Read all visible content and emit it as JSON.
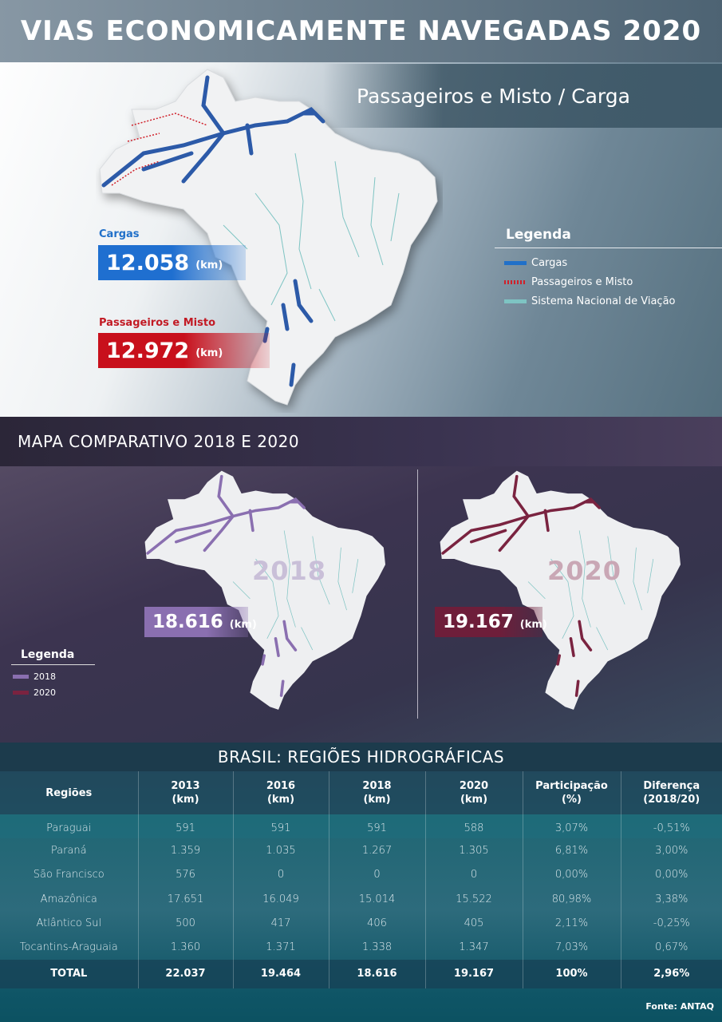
{
  "title": "VIAS ECONOMICAMENTE NAVEGADAS 2020",
  "top": {
    "subtitle": "Passageiros e Misto / Carga",
    "cargas": {
      "label": "Cargas",
      "value": "12.058",
      "unit": "(km)"
    },
    "passageiros": {
      "label": "Passageiros e Misto",
      "value": "12.972",
      "unit": "(km)"
    },
    "legend": {
      "title": "Legenda",
      "items": [
        {
          "label": "Cargas",
          "color": "#2170c9"
        },
        {
          "label": "Passageiros e Misto",
          "color": "#d0202a"
        },
        {
          "label": "Sistema Nacional de Viação",
          "color": "#7ec4c3"
        }
      ]
    }
  },
  "comparison": {
    "title": "MAPA COMPARATIVO 2018 E 2020",
    "map2018": {
      "year": "2018",
      "value": "18.616",
      "unit": "(km)",
      "color": "#8a6fb0"
    },
    "map2020": {
      "year": "2020",
      "value": "19.167",
      "unit": "(km)",
      "color": "#7a2340"
    },
    "legend": {
      "title": "Legenda",
      "items": [
        {
          "label": "2018",
          "color": "#8a6fb0"
        },
        {
          "label": "2020",
          "color": "#7a2340"
        }
      ]
    }
  },
  "table": {
    "title": "BRASIL: REGIÕES HIDROGRÁFICAS",
    "headers": [
      [
        "Regiões",
        ""
      ],
      [
        "2013",
        "(km)"
      ],
      [
        "2016",
        "(km)"
      ],
      [
        "2018",
        "(km)"
      ],
      [
        "2020",
        "(km)"
      ],
      [
        "Participação",
        "(%)"
      ],
      [
        "Diferença",
        "(2018/20)"
      ]
    ],
    "rows": [
      [
        "Paraguai",
        "591",
        "591",
        "591",
        "588",
        "3,07%",
        "-0,51%"
      ],
      [
        "Paraná",
        "1.359",
        "1.035",
        "1.267",
        "1.305",
        "6,81%",
        "3,00%"
      ],
      [
        "São Francisco",
        "576",
        "0",
        "0",
        "0",
        "0,00%",
        "0,00%"
      ],
      [
        "Amazônica",
        "17.651",
        "16.049",
        "15.014",
        "15.522",
        "80,98%",
        "3,38%"
      ],
      [
        "Atlântico Sul",
        "500",
        "417",
        "406",
        "405",
        "2,11%",
        "-0,25%"
      ],
      [
        "Tocantins-Araguaia",
        "1.360",
        "1.371",
        "1.338",
        "1.347",
        "7,03%",
        "0,67%"
      ]
    ],
    "total": [
      "TOTAL",
      "22.037",
      "19.464",
      "18.616",
      "19.167",
      "100%",
      "2,96%"
    ]
  },
  "source": "Fonte: ANTAQ"
}
